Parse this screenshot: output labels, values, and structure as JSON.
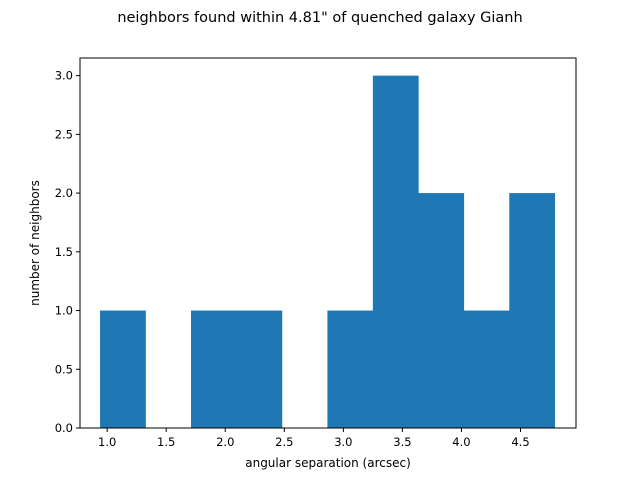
{
  "chart_data": {
    "type": "bar",
    "title": "neighbors found within 4.81\" of quenched galaxy Gianh",
    "xlabel": "angular separation (arcsec)",
    "ylabel": "number of neighbors",
    "xlim": [
      0.77,
      4.97
    ],
    "ylim": [
      0,
      3.15
    ],
    "xticks": [
      1.0,
      1.5,
      2.0,
      2.5,
      3.0,
      3.5,
      4.0,
      4.5
    ],
    "xtick_labels": [
      "1.0",
      "1.5",
      "2.0",
      "2.5",
      "3.0",
      "3.5",
      "4.0",
      "4.5"
    ],
    "yticks": [
      0.0,
      0.5,
      1.0,
      1.5,
      2.0,
      2.5,
      3.0
    ],
    "ytick_labels": [
      "0.0",
      "0.5",
      "1.0",
      "1.5",
      "2.0",
      "2.5",
      "3.0"
    ],
    "bins": [
      {
        "x0": 0.94,
        "x1": 1.325,
        "count": 1
      },
      {
        "x0": 1.325,
        "x1": 1.71,
        "count": 0
      },
      {
        "x0": 1.71,
        "x1": 2.095,
        "count": 1
      },
      {
        "x0": 2.095,
        "x1": 2.48,
        "count": 1
      },
      {
        "x0": 2.48,
        "x1": 2.865,
        "count": 0
      },
      {
        "x0": 2.865,
        "x1": 3.25,
        "count": 1
      },
      {
        "x0": 3.25,
        "x1": 3.635,
        "count": 3
      },
      {
        "x0": 3.635,
        "x1": 4.02,
        "count": 2
      },
      {
        "x0": 4.02,
        "x1": 4.405,
        "count": 1
      },
      {
        "x0": 4.405,
        "x1": 4.79,
        "count": 2
      }
    ],
    "bar_color": "#1f77b4",
    "grid": false
  }
}
